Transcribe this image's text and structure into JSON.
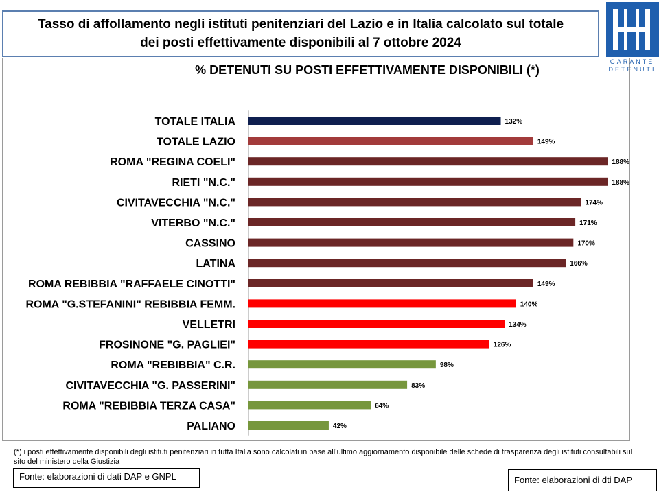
{
  "header": {
    "title_line1": "Tasso di affollamento negli istituti penitenziari del Lazio e in Italia calcolato sul totale",
    "title_line2": "dei posti effettivamente disponibili al 7 ottobre 2024"
  },
  "logo": {
    "text_line1": "GARANTE",
    "text_line2": "DETENUTI",
    "color": "#1f5fae"
  },
  "chart_data": {
    "type": "bar",
    "orientation": "horizontal",
    "title": "% DETENUTI SU POSTI EFFETTIVAMENTE DISPONIBILI (*)",
    "xlim": [
      0,
      190
    ],
    "grid": false,
    "categories": [
      "TOTALE ITALIA",
      "TOTALE LAZIO",
      "ROMA \"REGINA COELI\"",
      "RIETI \"N.C.\"",
      "CIVITAVECCHIA \"N.C.\"",
      "VITERBO \"N.C.\"",
      "CASSINO",
      "LATINA",
      "ROMA REBIBBIA \"RAFFAELE CINOTTI\"",
      "ROMA \"G.STEFANINI\" REBIBBIA FEMM.",
      "VELLETRI",
      "FROSINONE \"G. PAGLIEI\"",
      "ROMA \"REBIBBIA\" C.R.",
      "CIVITAVECCHIA \"G. PASSERINI\"",
      "ROMA \"REBIBBIA TERZA CASA\"",
      "PALIANO"
    ],
    "values": [
      132,
      149,
      188,
      188,
      174,
      171,
      170,
      166,
      149,
      140,
      134,
      126,
      98,
      83,
      64,
      42
    ],
    "value_labels": [
      "132%",
      "149%",
      "188%",
      "188%",
      "174%",
      "171%",
      "170%",
      "166%",
      "149%",
      "140%",
      "134%",
      "126%",
      "98%",
      "83%",
      "64%",
      "42%"
    ],
    "colors": [
      "#0f1f4f",
      "#a23b3b",
      "#6b2626",
      "#6b2626",
      "#6b2626",
      "#6b2626",
      "#6b2626",
      "#6b2626",
      "#6b2626",
      "#ff0000",
      "#ff0000",
      "#ff0000",
      "#77973d",
      "#77973d",
      "#77973d",
      "#77973d"
    ]
  },
  "footnote": "(*) i posti effettivamente disponibili  degli istituti penitenziari in tutta Italia sono calcolati in base all’ultimo aggiornamento disponibile  delle schede di trasparenza degli istituti consultabili sul sito del ministero della Giustizia",
  "sources": {
    "left": "Fonte: elaborazioni di dati DAP e GNPL",
    "right": "Fonte: elaborazioni di dti DAP"
  }
}
